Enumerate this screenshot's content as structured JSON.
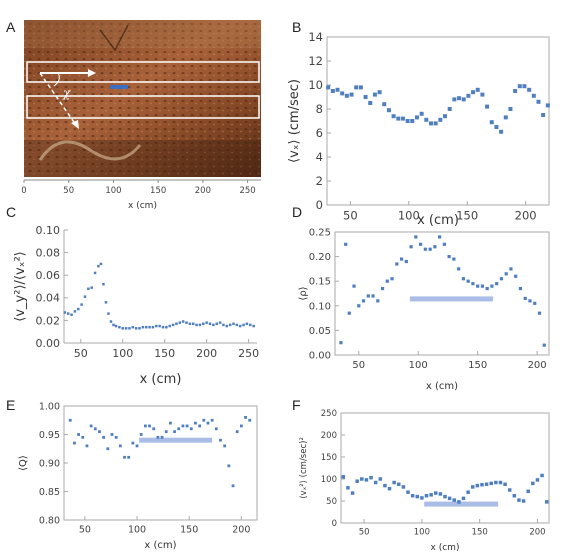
{
  "colors": {
    "marker": "#4f7fc0",
    "bar": "#a9bde6",
    "frame": "#aaaaaa",
    "photo_dark": "#3b1f10",
    "photo_mid": "#8a4e2c",
    "photo_light": "#b87a4d"
  },
  "panels": {
    "A": {
      "label": "A",
      "photo_overlay": {
        "chi_symbol": "χ",
        "boxes": 2,
        "arrows": [
          "solid-right",
          "dashed-diagonal"
        ]
      },
      "axis": {
        "xlabel": "x (cm)",
        "ticks": [
          "0",
          "50",
          "100",
          "150",
          "200",
          "250"
        ]
      }
    }
  },
  "chart_data": [
    {
      "id": "B",
      "type": "scatter",
      "xlabel": "x (cm)",
      "ylabel": "⟨vₓ⟩ (cm/sec)",
      "xlim": [
        30,
        220
      ],
      "ylim": [
        0,
        14
      ],
      "xticks": [
        "50",
        "100",
        "150",
        "200"
      ],
      "yticks": [
        "0",
        "2",
        "4",
        "6",
        "8",
        "10",
        "12",
        "14"
      ],
      "x": [
        31,
        35,
        39,
        43,
        47,
        51,
        55,
        59,
        63,
        67,
        71,
        75,
        79,
        83,
        87,
        91,
        95,
        99,
        103,
        107,
        111,
        115,
        119,
        123,
        127,
        131,
        135,
        139,
        143,
        147,
        151,
        155,
        159,
        163,
        167,
        171,
        175,
        179,
        183,
        187,
        191,
        195,
        199,
        203,
        207,
        211,
        215,
        219
      ],
      "y": [
        9.8,
        9.5,
        9.6,
        9.3,
        9.1,
        9.2,
        9.8,
        9.8,
        9.0,
        8.5,
        9.2,
        9.4,
        8.4,
        7.9,
        7.4,
        7.2,
        7.2,
        7.0,
        7.0,
        7.3,
        7.6,
        7.1,
        6.8,
        6.8,
        7.1,
        7.4,
        8.0,
        8.8,
        8.9,
        8.8,
        9.1,
        9.4,
        9.6,
        9.2,
        8.2,
        6.9,
        6.5,
        6.1,
        7.3,
        8.0,
        9.5,
        9.9,
        9.9,
        9.6,
        9.1,
        8.6,
        7.5,
        8.3
      ]
    },
    {
      "id": "C",
      "type": "scatter",
      "xlabel": "x (cm)",
      "ylabel": "⟨v_y²⟩/⟨vₓ²⟩",
      "xlim": [
        30,
        260
      ],
      "ylim": [
        0,
        0.1
      ],
      "xticks": [
        "50",
        "100",
        "150",
        "200",
        "250"
      ],
      "yticks": [
        "0.00",
        "0.02",
        "0.04",
        "0.06",
        "0.08",
        "0.10"
      ],
      "x": [
        31,
        35,
        39,
        43,
        47,
        51,
        55,
        59,
        63,
        67,
        71,
        74,
        77,
        80,
        83,
        86,
        89,
        92,
        96,
        100,
        104,
        108,
        112,
        116,
        120,
        124,
        128,
        132,
        136,
        140,
        144,
        148,
        152,
        156,
        160,
        164,
        168,
        172,
        176,
        180,
        184,
        188,
        192,
        196,
        200,
        204,
        208,
        212,
        216,
        220,
        224,
        228,
        232,
        236,
        240,
        244,
        248,
        252,
        256
      ],
      "y": [
        0.027,
        0.026,
        0.025,
        0.028,
        0.03,
        0.034,
        0.041,
        0.048,
        0.049,
        0.062,
        0.068,
        0.07,
        0.052,
        0.036,
        0.026,
        0.019,
        0.016,
        0.015,
        0.014,
        0.013,
        0.013,
        0.013,
        0.014,
        0.013,
        0.013,
        0.014,
        0.014,
        0.014,
        0.014,
        0.015,
        0.015,
        0.014,
        0.014,
        0.015,
        0.016,
        0.017,
        0.018,
        0.019,
        0.018,
        0.017,
        0.017,
        0.016,
        0.016,
        0.017,
        0.018,
        0.017,
        0.016,
        0.017,
        0.018,
        0.016,
        0.015,
        0.016,
        0.017,
        0.016,
        0.015,
        0.016,
        0.017,
        0.016,
        0.015
      ]
    },
    {
      "id": "D",
      "type": "scatter",
      "xlabel": "x (cm)",
      "ylabel": "⟨ρ⟩",
      "xlim": [
        30,
        210
      ],
      "ylim": [
        0,
        0.25
      ],
      "xticks": [
        "50",
        "100",
        "150",
        "200"
      ],
      "yticks": [
        "0.00",
        "0.05",
        "0.10",
        "0.15",
        "0.20",
        "0.25"
      ],
      "x": [
        35,
        39,
        42,
        46,
        50,
        54,
        58,
        62,
        66,
        70,
        74,
        78,
        82,
        86,
        90,
        94,
        98,
        102,
        106,
        110,
        114,
        118,
        122,
        126,
        130,
        134,
        138,
        142,
        146,
        150,
        154,
        158,
        162,
        166,
        170,
        174,
        178,
        182,
        186,
        190,
        194,
        198,
        202,
        206
      ],
      "y": [
        0.025,
        0.225,
        0.085,
        0.14,
        0.1,
        0.11,
        0.12,
        0.12,
        0.11,
        0.135,
        0.15,
        0.155,
        0.185,
        0.195,
        0.19,
        0.22,
        0.24,
        0.225,
        0.215,
        0.215,
        0.22,
        0.24,
        0.225,
        0.2,
        0.195,
        0.175,
        0.155,
        0.15,
        0.145,
        0.14,
        0.14,
        0.135,
        0.14,
        0.145,
        0.155,
        0.165,
        0.175,
        0.16,
        0.135,
        0.115,
        0.11,
        0.105,
        0.085,
        0.02
      ],
      "hbar": {
        "x": [
          93,
          163
        ],
        "y": 0.114
      }
    },
    {
      "id": "E",
      "type": "scatter",
      "xlabel": "x (cm)",
      "ylabel": "⟨Q⟩",
      "xlim": [
        30,
        215
      ],
      "ylim": [
        0.8,
        1.0
      ],
      "xticks": [
        "50",
        "100",
        "150",
        "200"
      ],
      "yticks": [
        "0.80",
        "0.85",
        "0.90",
        "0.95",
        "1.00"
      ],
      "x": [
        36,
        40,
        44,
        48,
        52,
        56,
        60,
        64,
        68,
        72,
        76,
        80,
        84,
        88,
        92,
        96,
        100,
        104,
        108,
        112,
        116,
        120,
        124,
        128,
        132,
        136,
        140,
        144,
        148,
        152,
        156,
        160,
        164,
        168,
        172,
        176,
        180,
        184,
        188,
        192,
        196,
        200,
        204,
        208
      ],
      "y": [
        0.975,
        0.935,
        0.95,
        0.945,
        0.93,
        0.965,
        0.96,
        0.955,
        0.945,
        0.925,
        0.95,
        0.945,
        0.93,
        0.91,
        0.91,
        0.935,
        0.93,
        0.95,
        0.965,
        0.965,
        0.96,
        0.945,
        0.945,
        0.955,
        0.97,
        0.955,
        0.96,
        0.965,
        0.965,
        0.96,
        0.97,
        0.965,
        0.975,
        0.97,
        0.975,
        0.96,
        0.94,
        0.93,
        0.895,
        0.86,
        0.955,
        0.965,
        0.98,
        0.975
      ],
      "hbar": {
        "x": [
          102,
          172
        ],
        "y": 0.94
      }
    },
    {
      "id": "F",
      "type": "scatter",
      "xlabel": "x (cm)",
      "ylabel": "⟨vₓ²⟩ (cm/sec)²",
      "xlim": [
        30,
        210
      ],
      "ylim": [
        0,
        250
      ],
      "xticks": [
        "50",
        "100",
        "150",
        "200"
      ],
      "yticks": [
        "0",
        "50",
        "100",
        "150",
        "200",
        "250"
      ],
      "x": [
        32,
        36,
        40,
        44,
        48,
        52,
        56,
        60,
        64,
        68,
        72,
        76,
        80,
        84,
        88,
        92,
        96,
        100,
        104,
        108,
        112,
        116,
        120,
        124,
        128,
        132,
        136,
        140,
        144,
        148,
        152,
        156,
        160,
        164,
        168,
        172,
        176,
        180,
        184,
        188,
        192,
        196,
        200,
        204,
        208
      ],
      "y": [
        105,
        80,
        68,
        95,
        100,
        98,
        103,
        92,
        100,
        85,
        78,
        92,
        88,
        82,
        70,
        62,
        60,
        57,
        62,
        64,
        68,
        66,
        60,
        56,
        52,
        48,
        56,
        70,
        82,
        85,
        87,
        88,
        90,
        92,
        92,
        88,
        75,
        62,
        52,
        50,
        72,
        90,
        98,
        108,
        48
      ],
      "hbar": {
        "x": [
          102,
          166
        ],
        "y": 43
      }
    }
  ]
}
